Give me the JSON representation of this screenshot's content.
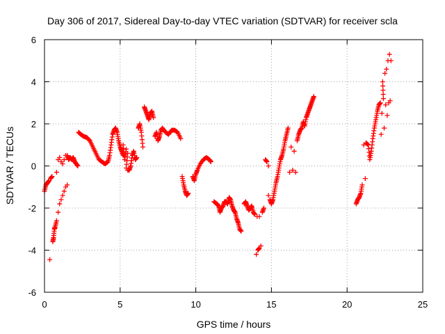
{
  "chart_data": {
    "type": "scatter",
    "title": "Day 306 of 2017, Sidereal Day-to-day VTEC variation (SDTVAR) for receiver scla",
    "xlabel": "GPS time / hours",
    "ylabel": "SDTVAR / TECUs",
    "xlim": [
      0,
      25
    ],
    "ylim": [
      -6,
      6
    ],
    "xticks": [
      0,
      5,
      10,
      15,
      20,
      25
    ],
    "yticks": [
      -6,
      -4,
      -2,
      0,
      2,
      4,
      6
    ],
    "xtick_labels": [
      "0",
      "5",
      "10",
      "15",
      "20",
      "25"
    ],
    "ytick_labels": [
      "-6",
      "-4",
      "-2",
      "0",
      "2",
      "4",
      "6"
    ],
    "grid": true,
    "marker": "plus",
    "color": "#ff0000",
    "series": [
      {
        "points": [
          [
            0.0,
            -1.2
          ],
          [
            0.1,
            -0.9
          ],
          [
            0.2,
            -0.8
          ],
          [
            0.3,
            -0.7
          ],
          [
            0.35,
            -4.45
          ],
          [
            0.4,
            -0.6
          ],
          [
            0.5,
            -0.5
          ],
          [
            0.55,
            -3.6
          ],
          [
            0.6,
            -3.4
          ],
          [
            0.65,
            -3.0
          ],
          [
            0.7,
            -2.9
          ],
          [
            0.8,
            -2.6
          ],
          [
            0.8,
            -0.3
          ],
          [
            0.9,
            -2.2
          ],
          [
            0.9,
            0.3
          ],
          [
            1.0,
            -1.8
          ],
          [
            1.0,
            0.4
          ],
          [
            1.1,
            -1.6
          ],
          [
            1.1,
            0.2
          ],
          [
            1.2,
            -1.4
          ],
          [
            1.2,
            0.1
          ],
          [
            1.3,
            -1.2
          ],
          [
            1.3,
            0.3
          ],
          [
            1.4,
            -1.0
          ],
          [
            1.4,
            0.5
          ],
          [
            1.5,
            -0.9
          ],
          [
            1.5,
            0.5
          ],
          [
            1.6,
            0.3
          ],
          [
            1.7,
            0.4
          ],
          [
            1.8,
            0.3
          ],
          [
            1.9,
            0.4
          ],
          [
            2.0,
            0.2
          ],
          [
            2.1,
            0.1
          ],
          [
            2.2,
            0.0
          ],
          [
            2.25,
            1.6
          ],
          [
            2.4,
            1.5
          ],
          [
            2.6,
            1.4
          ],
          [
            2.8,
            1.35
          ],
          [
            3.0,
            1.2
          ],
          [
            3.2,
            0.9
          ],
          [
            3.4,
            0.6
          ],
          [
            3.6,
            0.3
          ],
          [
            3.8,
            0.2
          ],
          [
            4.0,
            0.1
          ],
          [
            4.2,
            0.2
          ],
          [
            4.3,
            0.5
          ],
          [
            4.4,
            1.0
          ],
          [
            4.5,
            1.5
          ],
          [
            4.6,
            1.7
          ],
          [
            4.7,
            1.8
          ],
          [
            4.8,
            1.6
          ],
          [
            4.9,
            1.2
          ],
          [
            5.0,
            0.9
          ],
          [
            5.1,
            0.7
          ],
          [
            5.2,
            0.5
          ],
          [
            5.2,
            1.0
          ],
          [
            5.3,
            0.3
          ],
          [
            5.4,
            0.8
          ],
          [
            5.4,
            -0.1
          ],
          [
            5.5,
            0.6
          ],
          [
            5.5,
            -0.2
          ],
          [
            5.6,
            -0.2
          ],
          [
            5.7,
            0.0
          ],
          [
            5.8,
            0.5
          ],
          [
            5.9,
            0.7
          ],
          [
            6.0,
            0.3
          ],
          [
            6.1,
            0.4
          ],
          [
            6.2,
            1.8
          ],
          [
            6.3,
            2.0
          ],
          [
            6.4,
            1.6
          ],
          [
            6.5,
            0.9
          ],
          [
            6.6,
            2.8
          ],
          [
            6.7,
            2.6
          ],
          [
            6.8,
            2.4
          ],
          [
            6.9,
            2.2
          ],
          [
            7.0,
            2.5
          ],
          [
            7.1,
            2.6
          ],
          [
            7.2,
            2.3
          ],
          [
            7.3,
            1.4
          ],
          [
            7.4,
            1.6
          ],
          [
            7.5,
            1.2
          ],
          [
            7.6,
            1.4
          ],
          [
            7.7,
            1.7
          ],
          [
            7.8,
            1.8
          ],
          [
            8.0,
            1.6
          ],
          [
            8.2,
            1.5
          ],
          [
            8.4,
            1.7
          ],
          [
            8.6,
            1.7
          ],
          [
            8.8,
            1.6
          ],
          [
            9.0,
            1.3
          ],
          [
            9.1,
            -0.5
          ],
          [
            9.2,
            -0.9
          ],
          [
            9.3,
            -1.2
          ],
          [
            9.4,
            -1.4
          ],
          [
            9.5,
            -1.3
          ],
          [
            9.8,
            -0.5
          ],
          [
            9.9,
            -0.7
          ],
          [
            10.0,
            -0.4
          ],
          [
            10.1,
            -0.2
          ],
          [
            10.3,
            0.1
          ],
          [
            10.5,
            0.3
          ],
          [
            10.7,
            0.4
          ],
          [
            10.9,
            0.3
          ],
          [
            11.0,
            0.2
          ],
          [
            11.2,
            -1.7
          ],
          [
            11.4,
            -1.8
          ],
          [
            11.5,
            -1.9
          ],
          [
            11.6,
            -2.2
          ],
          [
            11.7,
            -2.0
          ],
          [
            11.8,
            -1.9
          ],
          [
            11.9,
            -1.7
          ],
          [
            12.0,
            -1.7
          ],
          [
            12.1,
            -1.8
          ],
          [
            12.2,
            -1.5
          ],
          [
            12.3,
            -1.6
          ],
          [
            12.4,
            -1.9
          ],
          [
            12.5,
            -2.1
          ],
          [
            12.6,
            -2.2
          ],
          [
            12.7,
            -2.5
          ],
          [
            12.8,
            -2.7
          ],
          [
            12.9,
            -3.0
          ],
          [
            13.0,
            -3.1
          ],
          [
            13.2,
            -1.8
          ],
          [
            13.3,
            -1.7
          ],
          [
            13.4,
            -1.9
          ],
          [
            13.5,
            -2.1
          ],
          [
            13.6,
            -2.0
          ],
          [
            13.7,
            -1.9
          ],
          [
            13.8,
            -2.2
          ],
          [
            13.9,
            -2.3
          ],
          [
            14.0,
            -4.2
          ],
          [
            14.05,
            -2.4
          ],
          [
            14.1,
            -4.0
          ],
          [
            14.2,
            -3.9
          ],
          [
            14.2,
            -2.4
          ],
          [
            14.3,
            -3.8
          ],
          [
            14.4,
            -2.2
          ],
          [
            14.5,
            -2.0
          ],
          [
            14.6,
            0.3
          ],
          [
            14.7,
            0.2
          ],
          [
            14.8,
            -1.4
          ],
          [
            14.8,
            0.0
          ],
          [
            14.9,
            -1.6
          ],
          [
            15.0,
            -1.8
          ],
          [
            15.1,
            -1.6
          ],
          [
            15.2,
            -1.2
          ],
          [
            15.3,
            -0.8
          ],
          [
            15.4,
            -0.5
          ],
          [
            15.5,
            -0.1
          ],
          [
            15.6,
            0.3
          ],
          [
            15.7,
            0.5
          ],
          [
            15.8,
            0.8
          ],
          [
            15.9,
            1.2
          ],
          [
            16.0,
            1.5
          ],
          [
            16.1,
            1.8
          ],
          [
            16.2,
            -0.3
          ],
          [
            16.3,
            0.9
          ],
          [
            16.4,
            -0.2
          ],
          [
            16.5,
            0.7
          ],
          [
            16.6,
            -0.3
          ],
          [
            16.7,
            1.2
          ],
          [
            16.8,
            1.5
          ],
          [
            16.9,
            1.7
          ],
          [
            17.0,
            1.8
          ],
          [
            17.1,
            2.1
          ],
          [
            17.2,
            1.9
          ],
          [
            17.3,
            2.3
          ],
          [
            17.4,
            2.5
          ],
          [
            17.5,
            2.7
          ],
          [
            17.6,
            2.9
          ],
          [
            17.7,
            3.1
          ],
          [
            17.8,
            3.3
          ],
          [
            20.6,
            -1.8
          ],
          [
            20.7,
            -1.6
          ],
          [
            20.8,
            -1.5
          ],
          [
            20.9,
            -1.3
          ],
          [
            21.0,
            -0.9
          ],
          [
            21.1,
            1.0
          ],
          [
            21.2,
            -0.6
          ],
          [
            21.25,
            1.1
          ],
          [
            21.4,
            1.0
          ],
          [
            21.5,
            0.3
          ],
          [
            21.6,
            0.7
          ],
          [
            21.7,
            1.3
          ],
          [
            21.8,
            1.8
          ],
          [
            21.9,
            2.2
          ],
          [
            22.0,
            2.6
          ],
          [
            22.1,
            2.9
          ],
          [
            22.2,
            3.0
          ],
          [
            22.25,
            1.5
          ],
          [
            22.3,
            2.5
          ],
          [
            22.35,
            4.0
          ],
          [
            22.4,
            3.2
          ],
          [
            22.45,
            1.8
          ],
          [
            22.5,
            4.4
          ],
          [
            22.55,
            2.9
          ],
          [
            22.6,
            4.6
          ],
          [
            22.65,
            2.4
          ],
          [
            22.7,
            5.0
          ],
          [
            22.75,
            3.0
          ],
          [
            22.8,
            5.3
          ],
          [
            22.85,
            3.1
          ],
          [
            22.9,
            5.0
          ]
        ]
      }
    ]
  }
}
